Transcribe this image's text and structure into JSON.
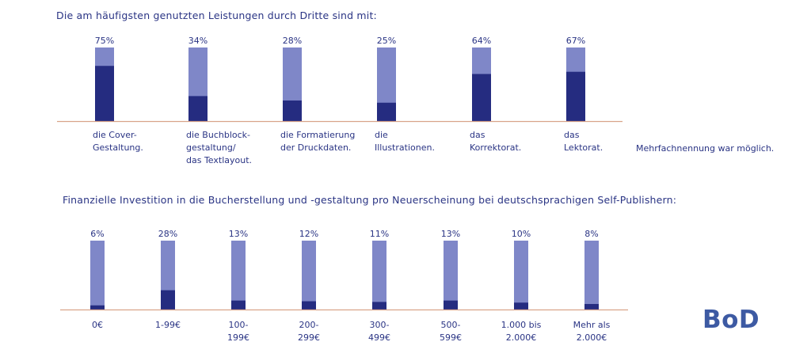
{
  "chart_data": [
    {
      "type": "bar",
      "title": "Die am häufigsten genutzten Leistungen durch Dritte sind mit:",
      "note": "Mehrfachnennung war möglich.",
      "categories": [
        [
          "die Cover-",
          "Gestaltung."
        ],
        [
          "die Buchblock-",
          "gestaltung/",
          "das Textlayout."
        ],
        [
          "die Formatierung",
          "der Druckdaten."
        ],
        [
          "die",
          "Illustrationen."
        ],
        [
          "das",
          "Korrektorat."
        ],
        [
          "das",
          "Lektorat."
        ]
      ],
      "values": [
        75,
        34,
        28,
        25,
        64,
        67
      ],
      "value_labels": [
        "75%",
        "34%",
        "28%",
        "25%",
        "64%",
        "67%"
      ],
      "ylim": [
        0,
        100
      ],
      "colors": {
        "track": "#7f87c8",
        "fill": "#252c80",
        "axis": "#d9a48a"
      }
    },
    {
      "type": "bar",
      "title": "Finanzielle Investition in die Bucherstellung und -gestaltung pro Neuerscheinung bei deutschsprachigen Self-Publishern:",
      "categories": [
        [
          "0€"
        ],
        [
          "1-99€"
        ],
        [
          "100-",
          "199€"
        ],
        [
          "200-",
          "299€"
        ],
        [
          "300-",
          "499€"
        ],
        [
          "500-",
          "599€"
        ],
        [
          "1.000 bis",
          "2.000€"
        ],
        [
          "Mehr als",
          "2.000€"
        ]
      ],
      "values": [
        6,
        28,
        13,
        12,
        11,
        13,
        10,
        8
      ],
      "value_labels": [
        "6%",
        "28%",
        "13%",
        "12%",
        "11%",
        "13%",
        "10%",
        "8%"
      ],
      "ylim": [
        0,
        100
      ],
      "colors": {
        "track": "#7f87c8",
        "fill": "#252c80",
        "axis": "#d9a48a"
      }
    }
  ],
  "logo_text": "BoD"
}
